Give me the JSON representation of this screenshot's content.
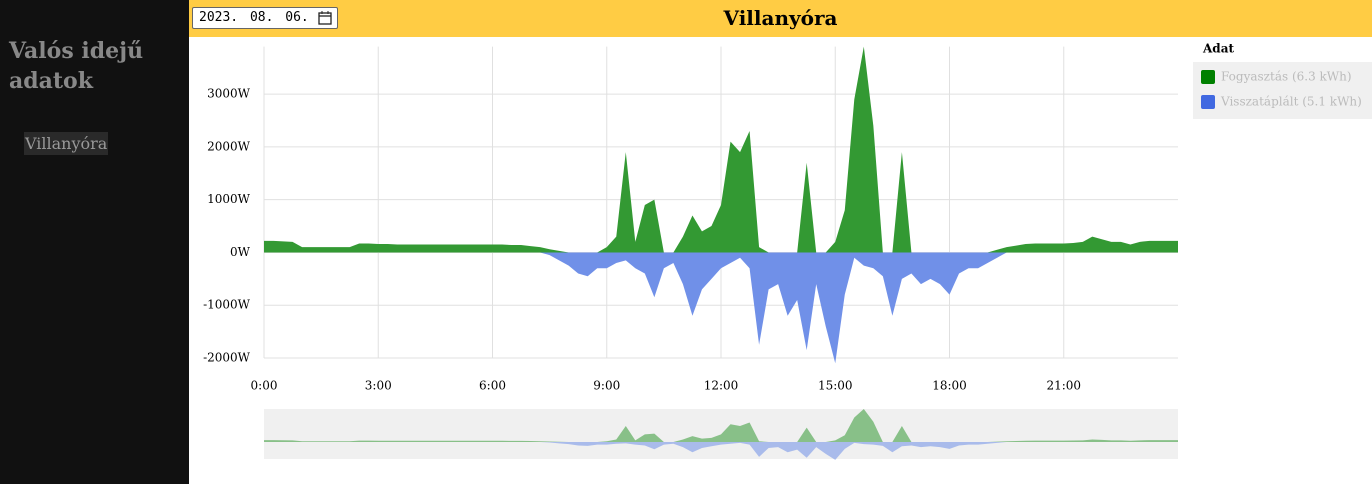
{
  "sidebar": {
    "title": "Valós idejű adatok",
    "items": [
      "Villanyóra"
    ]
  },
  "header": {
    "date": "2023. 08. 06.",
    "title": "Villanyóra"
  },
  "chart_data": {
    "type": "area",
    "legend_title": "Adat",
    "grid": true,
    "x": [
      0,
      0.25,
      0.5,
      0.75,
      1,
      1.25,
      1.5,
      1.75,
      2,
      2.25,
      2.5,
      2.75,
      3,
      3.25,
      3.5,
      3.75,
      4,
      4.25,
      4.5,
      4.75,
      5,
      5.25,
      5.5,
      5.75,
      6,
      6.25,
      6.5,
      6.75,
      7,
      7.25,
      7.5,
      7.75,
      8,
      8.25,
      8.5,
      8.75,
      9,
      9.25,
      9.5,
      9.75,
      10,
      10.25,
      10.5,
      10.75,
      11,
      11.25,
      11.5,
      11.75,
      12,
      12.25,
      12.5,
      12.75,
      13,
      13.25,
      13.5,
      13.75,
      14,
      14.25,
      14.5,
      14.75,
      15,
      15.25,
      15.5,
      15.75,
      16,
      16.25,
      16.5,
      16.75,
      17,
      17.25,
      17.5,
      17.75,
      18,
      18.25,
      18.5,
      18.75,
      19,
      19.25,
      19.5,
      19.75,
      20,
      20.25,
      20.5,
      20.75,
      21,
      21.25,
      21.5,
      21.75,
      22,
      22.25,
      22.5,
      22.75,
      23,
      23.25,
      23.5,
      23.75,
      24
    ],
    "series": [
      {
        "name": "Fogyasztás (6.3 kWh)",
        "color": "#008000",
        "fill": "#339933",
        "values": [
          220,
          220,
          210,
          200,
          100,
          100,
          100,
          100,
          100,
          100,
          170,
          170,
          160,
          160,
          150,
          150,
          150,
          150,
          150,
          150,
          150,
          150,
          150,
          150,
          150,
          150,
          140,
          140,
          120,
          100,
          60,
          30,
          0,
          0,
          0,
          0,
          100,
          300,
          1900,
          200,
          900,
          1000,
          0,
          0,
          300,
          700,
          400,
          500,
          900,
          2100,
          1900,
          2300,
          100,
          0,
          0,
          0,
          0,
          1700,
          0,
          0,
          200,
          800,
          2900,
          3900,
          2400,
          0,
          0,
          1900,
          0,
          0,
          0,
          0,
          0,
          0,
          0,
          0,
          0,
          50,
          100,
          130,
          160,
          170,
          170,
          170,
          170,
          180,
          200,
          300,
          250,
          200,
          200,
          150,
          200,
          220,
          220,
          220,
          220
        ]
      },
      {
        "name": "Visszatáplált (5.1 kWh)",
        "color": "#4169e1",
        "fill": "#7090e8",
        "values": [
          0,
          0,
          0,
          0,
          0,
          0,
          0,
          0,
          0,
          0,
          0,
          0,
          0,
          0,
          0,
          0,
          0,
          0,
          0,
          0,
          0,
          0,
          0,
          0,
          0,
          0,
          0,
          0,
          0,
          0,
          -50,
          -150,
          -250,
          -400,
          -450,
          -300,
          -300,
          -200,
          -150,
          -300,
          -400,
          -850,
          -300,
          -200,
          -600,
          -1200,
          -700,
          -500,
          -300,
          -200,
          -100,
          -300,
          -1750,
          -700,
          -600,
          -1200,
          -900,
          -1850,
          -600,
          -1400,
          -2100,
          -800,
          -100,
          -250,
          -300,
          -450,
          -1200,
          -500,
          -400,
          -600,
          -500,
          -600,
          -800,
          -400,
          -300,
          -300,
          -200,
          -100,
          0,
          0,
          0,
          0,
          0,
          0,
          0,
          0,
          0,
          0,
          0,
          0,
          0,
          0,
          0,
          0,
          0,
          0,
          0
        ]
      }
    ],
    "xlim": [
      0,
      24
    ],
    "xticks": [
      {
        "value": 0,
        "label": "0:00"
      },
      {
        "value": 3,
        "label": "3:00"
      },
      {
        "value": 6,
        "label": "6:00"
      },
      {
        "value": 9,
        "label": "9:00"
      },
      {
        "value": 12,
        "label": "12:00"
      },
      {
        "value": 15,
        "label": "15:00"
      },
      {
        "value": 18,
        "label": "18:00"
      },
      {
        "value": 21,
        "label": "21:00"
      }
    ],
    "ylim": [
      -2000,
      3900
    ],
    "yticks": [
      {
        "value": -2000,
        "label": "-2000W"
      },
      {
        "value": -1000,
        "label": "-1000W"
      },
      {
        "value": 0,
        "label": "0W"
      },
      {
        "value": 1000,
        "label": "1000W"
      },
      {
        "value": 2000,
        "label": "2000W"
      },
      {
        "value": 3000,
        "label": "3000W"
      }
    ]
  }
}
